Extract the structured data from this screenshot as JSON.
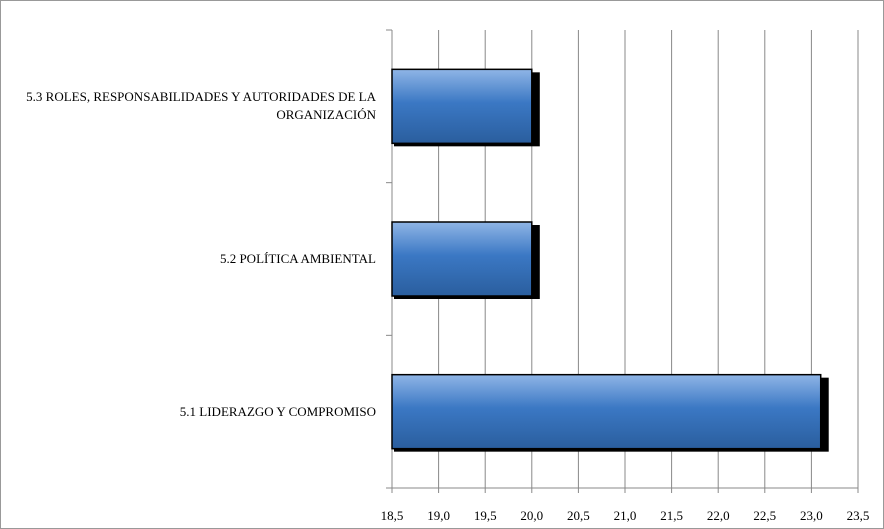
{
  "chart_data": {
    "type": "bar",
    "orientation": "horizontal",
    "categories": [
      "5.1 LIDERAZGO Y COMPROMISO",
      "5.2 POLÍTICA AMBIENTAL",
      "5.3 ROLES, RESPONSABILIDADES Y AUTORIDADES DE LA ORGANIZACIÓN"
    ],
    "values": [
      23.1,
      20.0,
      20.0
    ],
    "color": "#3b78c4",
    "xlim": [
      18.5,
      23.5
    ],
    "xticks": [
      {
        "value": 18.5,
        "label": "18,5"
      },
      {
        "value": 19.0,
        "label": "19,0"
      },
      {
        "value": 19.5,
        "label": "19,5"
      },
      {
        "value": 20.0,
        "label": "20,0"
      },
      {
        "value": 20.5,
        "label": "20,5"
      },
      {
        "value": 21.0,
        "label": "21,0"
      },
      {
        "value": 21.5,
        "label": "21,5"
      },
      {
        "value": 22.0,
        "label": "22,0"
      },
      {
        "value": 22.5,
        "label": "22,5"
      },
      {
        "value": 23.0,
        "label": "23,0"
      },
      {
        "value": 23.5,
        "label": "23,5"
      }
    ],
    "grid": true
  }
}
